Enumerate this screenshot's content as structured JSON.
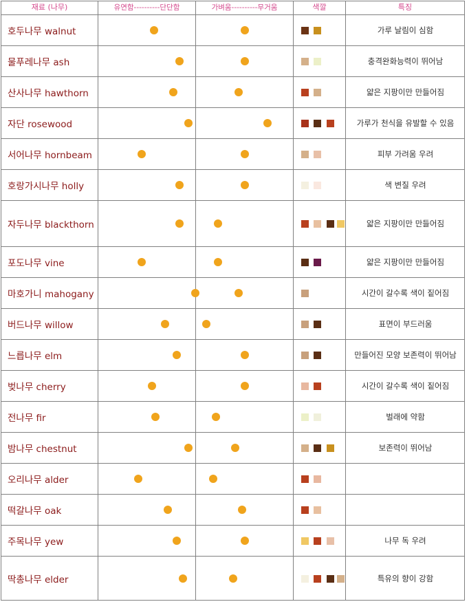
{
  "headers": {
    "material": "재료 (나무)",
    "hardness": "유연함----------단단함",
    "weight": "가벼움----------무거움",
    "color": "색깔",
    "feature": "특징"
  },
  "colors": {
    "dot": "#f0a41c",
    "header_text": "#d4488c",
    "name_text": "#8b1a1a"
  },
  "scale_note": "hardness and weight are positions on a 0 (left label) to 1 (right label) scale",
  "rows": [
    {
      "name": "호두나무 walnut",
      "hardness": 0.46,
      "weight": 0.58,
      "swatches": [
        "#6b3314",
        "#c8901e"
      ],
      "feature": "가루 날림이 심함"
    },
    {
      "name": "물푸레나무 ash",
      "hardness": 0.76,
      "weight": 0.58,
      "swatches": [
        "#d4b08a",
        "#ecf0c8"
      ],
      "feature": "충격완화능력이 뛰어남"
    },
    {
      "name": "산사나무 hawthorn",
      "hardness": 0.69,
      "weight": 0.51,
      "swatches": [
        "#b8401e",
        "#d4b08a"
      ],
      "feature": "얇은 지팡이만 만들어짐"
    },
    {
      "name": "자단 rosewood",
      "hardness": 0.86,
      "weight": 0.86,
      "swatches": [
        "#a8321a",
        "#5a2e14",
        "#b8401e"
      ],
      "feature": "가루가 천식을 유발할 수 있음"
    },
    {
      "name": "서어나무 hornbeam",
      "hardness": 0.32,
      "weight": 0.58,
      "swatches": [
        "#d4b08a",
        "#e8c0a8"
      ],
      "feature": "피부 가려움 우려"
    },
    {
      "name": "호랑가시나무 holly",
      "hardness": 0.76,
      "weight": 0.58,
      "swatches": [
        "#f4f0e0",
        "#fae8e0"
      ],
      "feature": "색 변질 우려"
    },
    {
      "name": "자두나무 blackthorn",
      "hardness": 0.76,
      "weight": 0.26,
      "swatches": [
        "#b8401e",
        "#e8c0a0",
        "#5a2e14",
        "#f0c864"
      ],
      "feature": "얇은 지팡이만 만들어짐"
    },
    {
      "name": "포도나무 vine",
      "hardness": 0.32,
      "weight": 0.26,
      "swatches": [
        "#5a2e14",
        "#6a1a4a"
      ],
      "feature": "얇은 지팡이만 만들어짐"
    },
    {
      "name": "마호가니 mahogany",
      "hardness": 0.94,
      "weight": 0.51,
      "swatches": [
        "#c8a07c"
      ],
      "feature": "시간이 갈수록 색이 짙어짐"
    },
    {
      "name": "버드나무 willow",
      "hardness": 0.59,
      "weight": 0.12,
      "swatches": [
        "#c8a07c",
        "#5a2e14"
      ],
      "feature": "표면이 부드러움"
    },
    {
      "name": "느릅나무 elm",
      "hardness": 0.73,
      "weight": 0.58,
      "swatches": [
        "#c8a07c",
        "#5a2e14"
      ],
      "feature": "만들어진 모양 보존력이 뛰어남"
    },
    {
      "name": "벚나무 cherry",
      "hardness": 0.44,
      "weight": 0.58,
      "swatches": [
        "#e8b8a0",
        "#b8401e"
      ],
      "feature": "시간이 갈수록 색이 짙어짐"
    },
    {
      "name": "전나무 fir",
      "hardness": 0.48,
      "weight": 0.23,
      "swatches": [
        "#ecf0c8",
        "#f0f0dc"
      ],
      "feature": "벌래에 약함"
    },
    {
      "name": "밤나무 chestnut",
      "hardness": 0.86,
      "weight": 0.47,
      "swatches": [
        "#d4b08a",
        "#5a2e14",
        "#c8901e"
      ],
      "feature": "보존력이 뛰어남"
    },
    {
      "name": "오리나무 alder",
      "hardness": 0.28,
      "weight": 0.2,
      "swatches": [
        "#b8401e",
        "#e8b8a0"
      ],
      "feature": ""
    },
    {
      "name": "떡갈나무 oak",
      "hardness": 0.62,
      "weight": 0.55,
      "swatches": [
        "#b8401e",
        "#e8c0a0"
      ],
      "feature": ""
    },
    {
      "name": "주목나무 yew",
      "hardness": 0.73,
      "weight": 0.58,
      "swatches": [
        "#f0c864",
        "#b8401e",
        "#e8c0a8"
      ],
      "feature": "나무 독 우려"
    },
    {
      "name": "딱총나무 elder",
      "hardness": 0.8,
      "weight": 0.44,
      "swatches": [
        "#f4f0e0",
        "#b8401e",
        "#5a2e14",
        "#d4b08a"
      ],
      "feature": "특유의 향이 강함"
    }
  ]
}
